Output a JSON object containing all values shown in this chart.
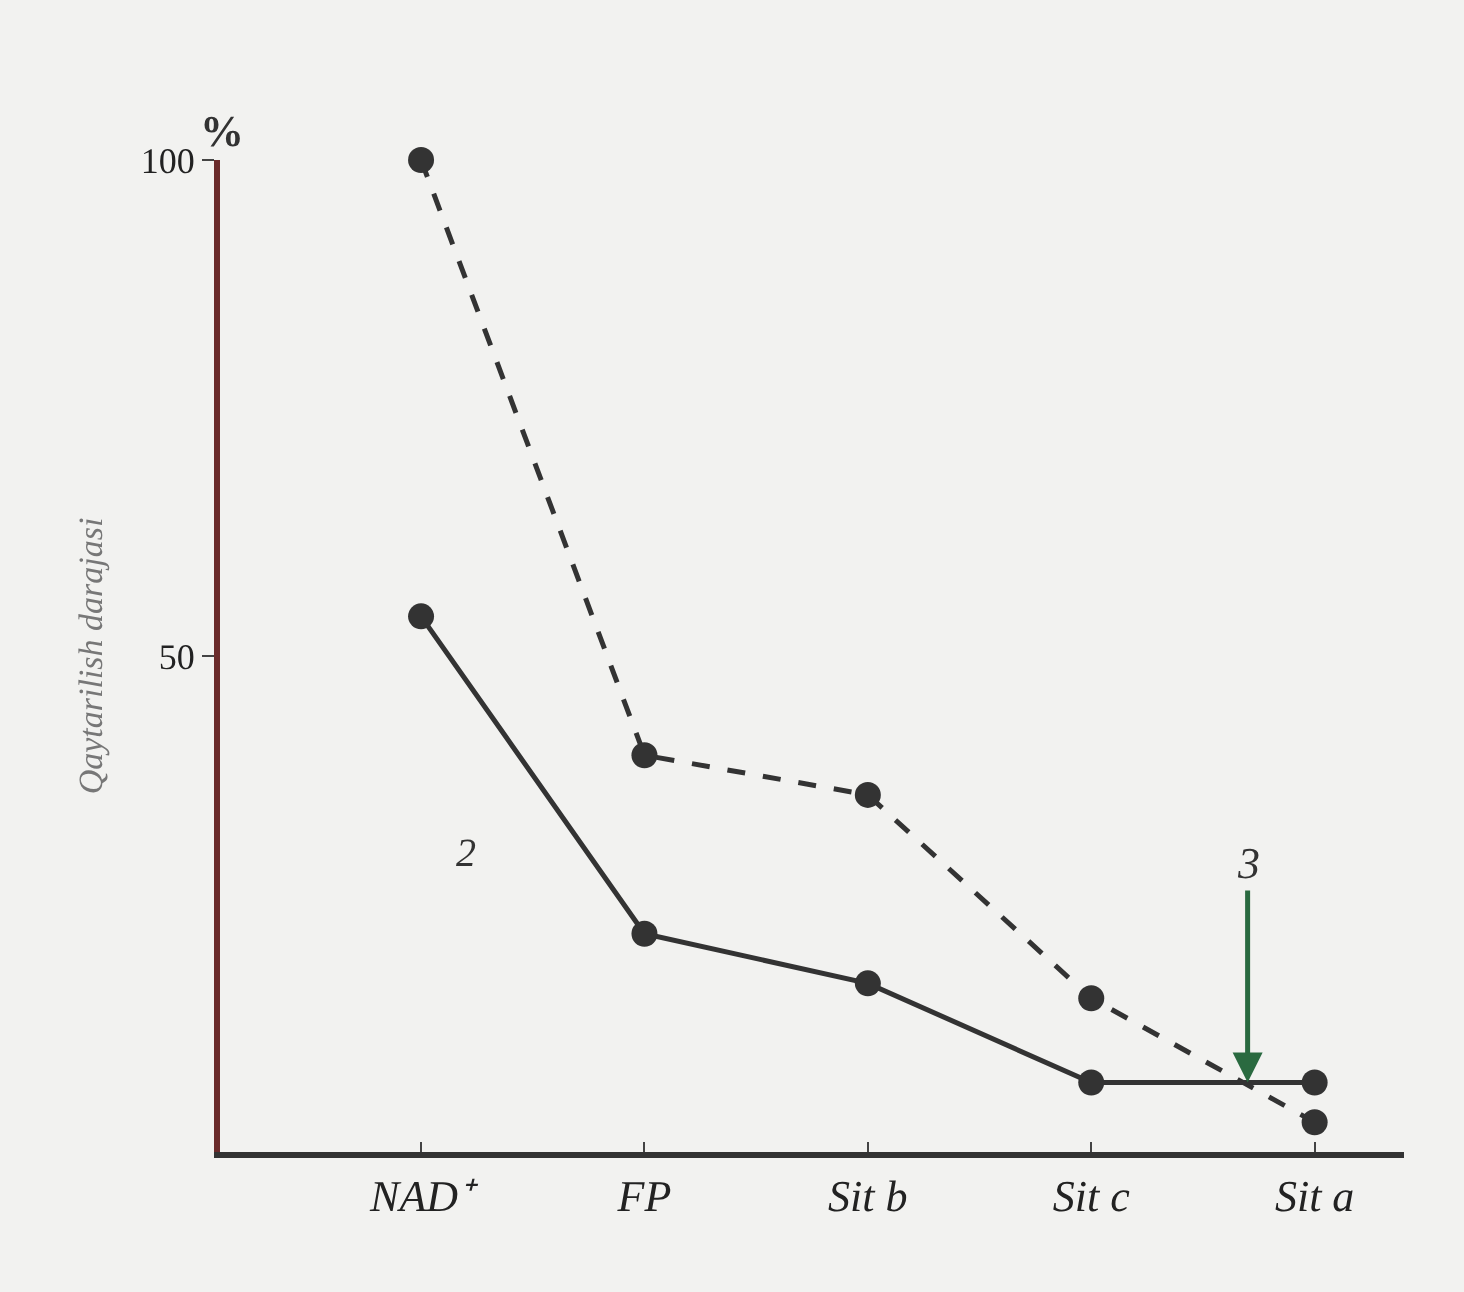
{
  "chart_data": {
    "type": "line",
    "ylabel": "Qaytarilish darajasi",
    "categories": [
      "NAD⁺",
      "FP",
      "Sit b",
      "Sit c",
      "Sit a"
    ],
    "series": [
      {
        "color": "#333333",
        "values": [
          100,
          40,
          36,
          15.5,
          3
        ],
        "line_style": "dashed",
        "marker": "circle"
      },
      {
        "name": "2",
        "color": "#333333",
        "values": [
          54,
          22,
          17,
          7,
          7
        ],
        "line_style": "solid",
        "marker": "circle"
      }
    ],
    "ylim": [
      0,
      100
    ],
    "yticks": [
      50,
      100
    ],
    "grid": false,
    "legend": false,
    "annotations": [
      "%",
      {
        "text": "3",
        "y": 7
      }
    ]
  }
}
